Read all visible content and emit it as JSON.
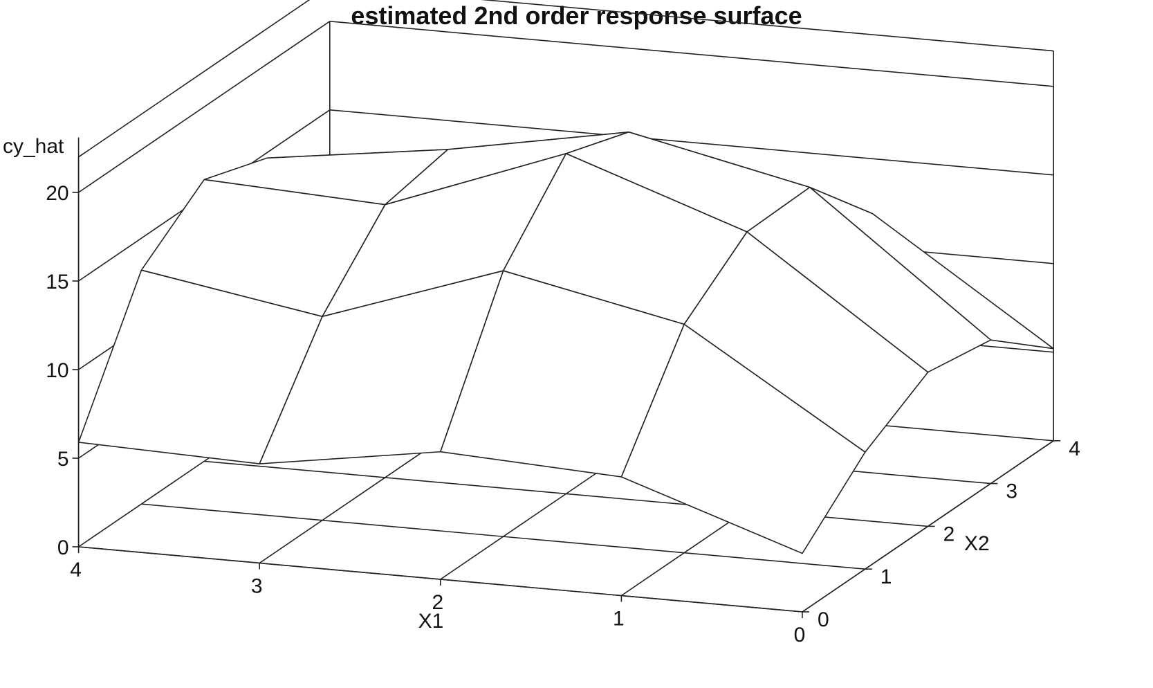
{
  "chart_data": {
    "type": "surface",
    "title": "estimated 2nd order response surface",
    "xlabel": "X1",
    "ylabel": "X2",
    "zlabel": "cy_hat",
    "x_ticks": [
      "0",
      "1",
      "2",
      "3",
      "4"
    ],
    "y_ticks": [
      "0",
      "1",
      "2",
      "3",
      "4"
    ],
    "z_ticks": [
      "0",
      "5",
      "10",
      "15",
      "20"
    ],
    "xlim": [
      0,
      4
    ],
    "ylim": [
      0,
      4
    ],
    "zlim": [
      0,
      22
    ],
    "x": [
      0,
      1,
      2,
      3,
      4
    ],
    "y": [
      0,
      1,
      2,
      3,
      4
    ],
    "z": [
      [
        3.3,
        6.6,
        8.7,
        8.1,
        5.2
      ],
      [
        6.7,
        12.9,
        15.7,
        15.8,
        11.9
      ],
      [
        7.2,
        15.0,
        19.2,
        18.0,
        12.5
      ],
      [
        5.6,
        11.5,
        15.4,
        16.1,
        11.6
      ],
      [
        5.9,
        13.2,
        15.9,
        14.7,
        7.2
      ]
    ],
    "grid": false,
    "colors": {
      "line": "#222222",
      "background": "#ffffff"
    }
  }
}
